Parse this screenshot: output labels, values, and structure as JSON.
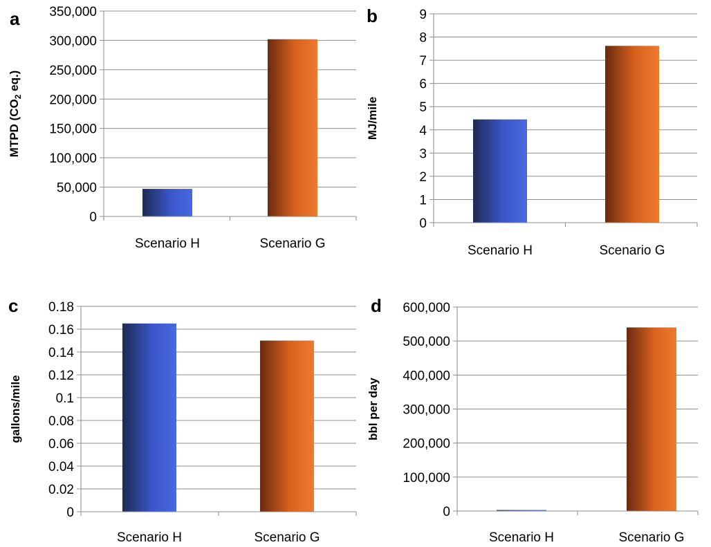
{
  "chart_data": [
    {
      "type": "bar",
      "panel": "a",
      "categories": [
        "Scenario H",
        "Scenario G"
      ],
      "values": [
        47000,
        302000
      ],
      "ylabel": "MTPD (CO2 eq.)",
      "ylim": [
        0,
        350000
      ],
      "yticks": [
        "0",
        "50,000",
        "100,000",
        "150,000",
        "200,000",
        "250,000",
        "300,000",
        "350,000"
      ],
      "grid": true,
      "colors": [
        "#3a56c8",
        "#e06a22"
      ]
    },
    {
      "type": "bar",
      "panel": "b",
      "categories": [
        "Scenario H",
        "Scenario G"
      ],
      "values": [
        4.45,
        7.62
      ],
      "ylabel": "MJ/mile",
      "ylim": [
        0,
        9
      ],
      "yticks": [
        "0",
        "1",
        "2",
        "3",
        "4",
        "5",
        "6",
        "7",
        "8",
        "9"
      ],
      "grid": true,
      "colors": [
        "#3a56c8",
        "#e06a22"
      ]
    },
    {
      "type": "bar",
      "panel": "c",
      "categories": [
        "Scenario H",
        "Scenario G"
      ],
      "values": [
        0.165,
        0.15
      ],
      "ylabel": "gallons/mile",
      "ylim": [
        0,
        0.18
      ],
      "yticks": [
        "0",
        "0.02",
        "0.04",
        "0.06",
        "0.08",
        "0.1",
        "0.12",
        "0.14",
        "0.16",
        "0.18"
      ],
      "grid": true,
      "colors": [
        "#3a56c8",
        "#e06a22"
      ]
    },
    {
      "type": "bar",
      "panel": "d",
      "categories": [
        "Scenario H",
        "Scenario G"
      ],
      "values": [
        3000,
        540000
      ],
      "ylabel": "bbl per day",
      "ylim": [
        0,
        600000
      ],
      "yticks": [
        "0",
        "100,000",
        "200,000",
        "300,000",
        "400,000",
        "500,000",
        "600,000"
      ],
      "grid": true,
      "colors": [
        "#3a56c8",
        "#e06a22"
      ]
    }
  ]
}
